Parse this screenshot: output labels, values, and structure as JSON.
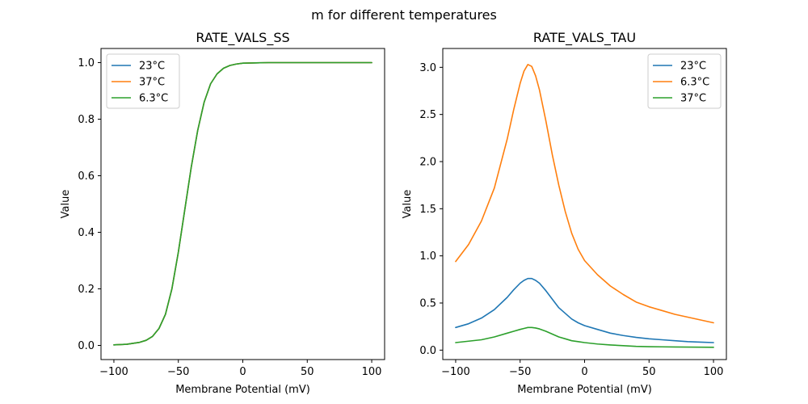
{
  "figure": {
    "suptitle": "m for different temperatures"
  },
  "chart_data": [
    {
      "type": "line",
      "title": "RATE_VALS_SS",
      "xlabel": "Membrane Potential (mV)",
      "ylabel": "Value",
      "xlim": [
        -110,
        110
      ],
      "ylim": [
        -0.05,
        1.05
      ],
      "xticks": [
        -100,
        -50,
        0,
        50,
        100
      ],
      "xtick_labels": [
        "−100",
        "−50",
        "0",
        "50",
        "100"
      ],
      "yticks": [
        0,
        0.2,
        0.4,
        0.6,
        0.8,
        1.0
      ],
      "ytick_labels": [
        "0.0",
        "0.2",
        "0.4",
        "0.6",
        "0.8",
        "1.0"
      ],
      "legend": "top-left",
      "x": [
        -100,
        -90,
        -80,
        -75,
        -70,
        -65,
        -60,
        -55,
        -50,
        -45,
        -40,
        -35,
        -30,
        -25,
        -20,
        -15,
        -10,
        -5,
        0,
        10,
        20,
        40,
        60,
        80,
        100
      ],
      "series": [
        {
          "name": "23°C",
          "color": "#1f77b4",
          "values": [
            0.002,
            0.004,
            0.011,
            0.018,
            0.032,
            0.06,
            0.11,
            0.2,
            0.33,
            0.48,
            0.63,
            0.76,
            0.86,
            0.925,
            0.96,
            0.98,
            0.99,
            0.995,
            0.998,
            0.999,
            1.0,
            1.0,
            1.0,
            1.0,
            1.0
          ]
        },
        {
          "name": "37°C",
          "color": "#ff7f0e",
          "values": [
            0.002,
            0.004,
            0.011,
            0.018,
            0.032,
            0.06,
            0.11,
            0.2,
            0.33,
            0.48,
            0.63,
            0.76,
            0.86,
            0.925,
            0.96,
            0.98,
            0.99,
            0.995,
            0.998,
            0.999,
            1.0,
            1.0,
            1.0,
            1.0,
            1.0
          ]
        },
        {
          "name": "6.3°C",
          "color": "#2ca02c",
          "values": [
            0.002,
            0.004,
            0.011,
            0.018,
            0.032,
            0.06,
            0.11,
            0.2,
            0.33,
            0.48,
            0.63,
            0.76,
            0.86,
            0.925,
            0.96,
            0.98,
            0.99,
            0.995,
            0.998,
            0.999,
            1.0,
            1.0,
            1.0,
            1.0,
            1.0
          ]
        }
      ]
    },
    {
      "type": "line",
      "title": "RATE_VALS_TAU",
      "xlabel": "Membrane Potential (mV)",
      "ylabel": "Value",
      "xlim": [
        -110,
        110
      ],
      "ylim": [
        -0.1,
        3.2
      ],
      "xticks": [
        -100,
        -50,
        0,
        50,
        100
      ],
      "xtick_labels": [
        "−100",
        "−50",
        "0",
        "50",
        "100"
      ],
      "yticks": [
        0,
        0.5,
        1.0,
        1.5,
        2.0,
        2.5,
        3.0
      ],
      "ytick_labels": [
        "0.0",
        "0.5",
        "1.0",
        "1.5",
        "2.0",
        "2.5",
        "3.0"
      ],
      "legend": "top-right",
      "x": [
        -100,
        -90,
        -80,
        -70,
        -60,
        -55,
        -50,
        -47,
        -44,
        -41,
        -38,
        -35,
        -30,
        -25,
        -20,
        -15,
        -10,
        -5,
        0,
        10,
        20,
        30,
        40,
        50,
        60,
        70,
        80,
        90,
        100
      ],
      "series": [
        {
          "name": "23°C",
          "color": "#1f77b4",
          "values": [
            0.24,
            0.28,
            0.34,
            0.43,
            0.56,
            0.64,
            0.71,
            0.74,
            0.76,
            0.76,
            0.74,
            0.71,
            0.63,
            0.54,
            0.45,
            0.39,
            0.33,
            0.29,
            0.26,
            0.22,
            0.18,
            0.155,
            0.135,
            0.12,
            0.11,
            0.1,
            0.09,
            0.085,
            0.08
          ]
        },
        {
          "name": "6.3°C",
          "color": "#ff7f0e",
          "values": [
            0.94,
            1.12,
            1.37,
            1.72,
            2.24,
            2.55,
            2.83,
            2.96,
            3.03,
            3.01,
            2.91,
            2.76,
            2.43,
            2.07,
            1.75,
            1.47,
            1.24,
            1.07,
            0.95,
            0.8,
            0.68,
            0.59,
            0.51,
            0.46,
            0.42,
            0.38,
            0.35,
            0.32,
            0.29
          ]
        },
        {
          "name": "37°C",
          "color": "#2ca02c",
          "values": [
            0.08,
            0.095,
            0.11,
            0.14,
            0.18,
            0.2,
            0.22,
            0.23,
            0.24,
            0.24,
            0.235,
            0.225,
            0.2,
            0.17,
            0.14,
            0.12,
            0.1,
            0.09,
            0.08,
            0.065,
            0.055,
            0.047,
            0.04,
            0.037,
            0.035,
            0.033,
            0.032,
            0.031,
            0.03
          ]
        }
      ]
    }
  ]
}
